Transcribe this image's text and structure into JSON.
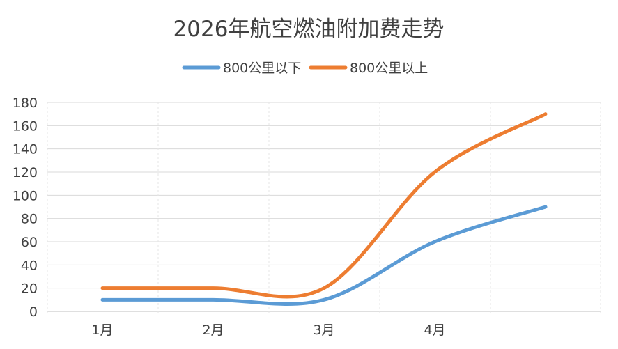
{
  "chart_data": {
    "type": "line",
    "title": "2026年航空燃油附加费走势",
    "categories": [
      "1月",
      "2月",
      "3月",
      "4月",
      ""
    ],
    "series": [
      {
        "name": "800公里以下",
        "color": "#5b9bd5",
        "values": [
          10,
          10,
          10,
          60,
          90
        ]
      },
      {
        "name": "800公里以上",
        "color": "#ed7d31",
        "values": [
          20,
          20,
          20,
          120,
          170
        ]
      }
    ],
    "ylim": [
      0,
      180
    ],
    "yticks": [
      0,
      20,
      40,
      60,
      80,
      100,
      120,
      140,
      160,
      180
    ],
    "smooth": true,
    "grid": true,
    "legend_position": "top"
  }
}
